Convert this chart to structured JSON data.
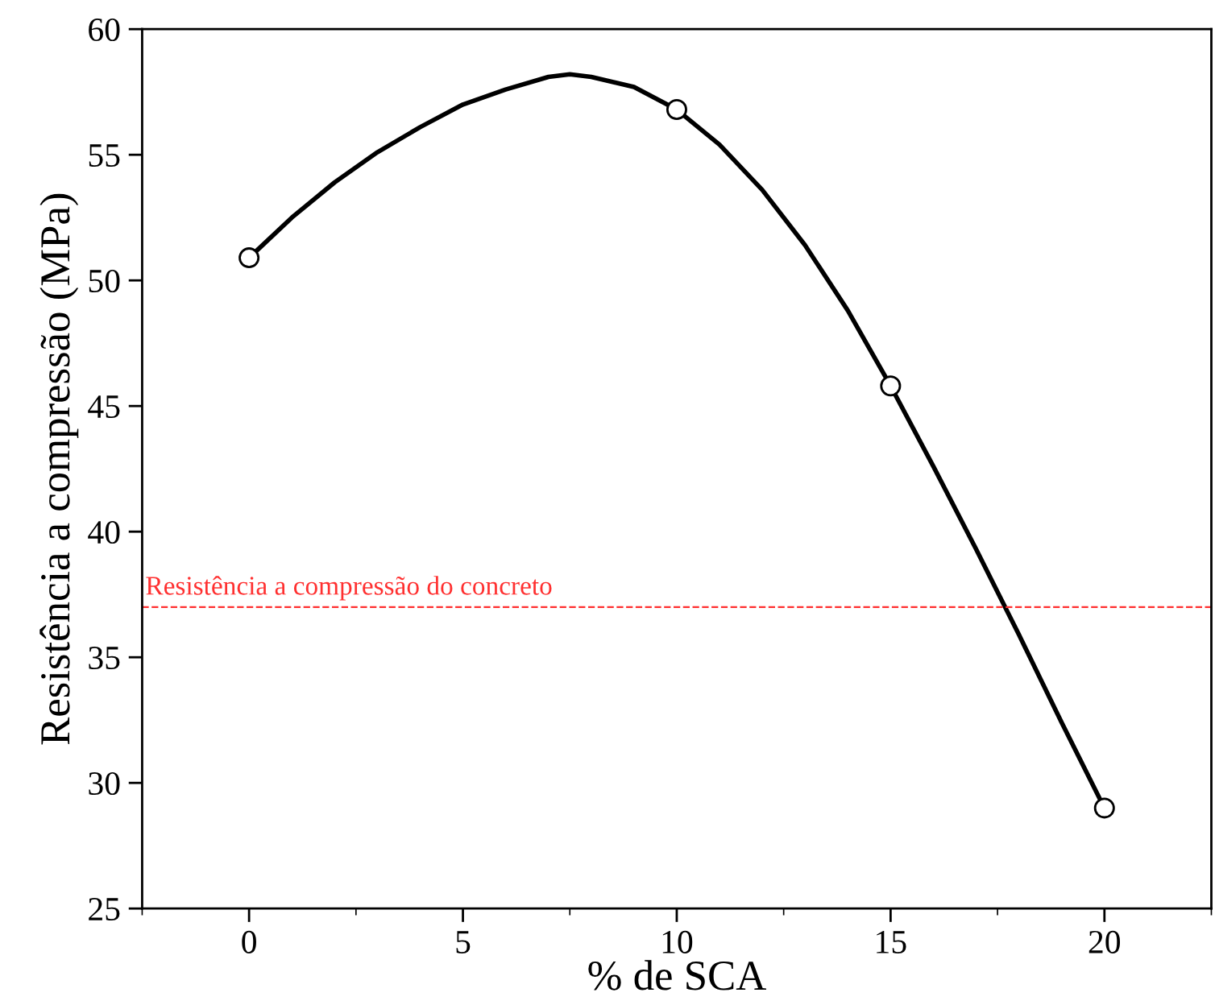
{
  "chart_data": {
    "type": "line",
    "xlabel": "% de SCA",
    "ylabel": "Resistência a compressão (MPa)",
    "xlim": [
      -2.4,
      22.5
    ],
    "xticks": [
      0,
      5,
      10,
      15,
      20
    ],
    "ylim": [
      25,
      60
    ],
    "yticks": [
      25,
      30,
      35,
      40,
      45,
      50,
      55,
      60
    ],
    "series": [
      {
        "color": "#000000",
        "marker": "none",
        "x": [
          0,
          1,
          2,
          3,
          4,
          5,
          6,
          7,
          7.5,
          8,
          9,
          10,
          11,
          12,
          13,
          14,
          15,
          16,
          17,
          18,
          19,
          20
        ],
        "values": [
          50.9,
          52.5,
          53.9,
          55.1,
          56.1,
          57.0,
          57.6,
          58.1,
          58.2,
          58.1,
          57.7,
          56.8,
          55.4,
          53.6,
          51.4,
          48.8,
          45.8,
          42.6,
          39.3,
          35.9,
          32.4,
          29.0
        ]
      },
      {
        "type": "scatter",
        "color": "#000000",
        "marker": "circle",
        "x": [
          0,
          10,
          15,
          20
        ],
        "values": [
          50.9,
          56.8,
          45.8,
          29.0
        ]
      }
    ],
    "ref_lines": [
      {
        "axis": "y",
        "value": 37,
        "label": "Resistência a compressão do concreto",
        "color": "#ff3030",
        "line_style": "dashed"
      }
    ],
    "grid": false,
    "legend": false
  }
}
